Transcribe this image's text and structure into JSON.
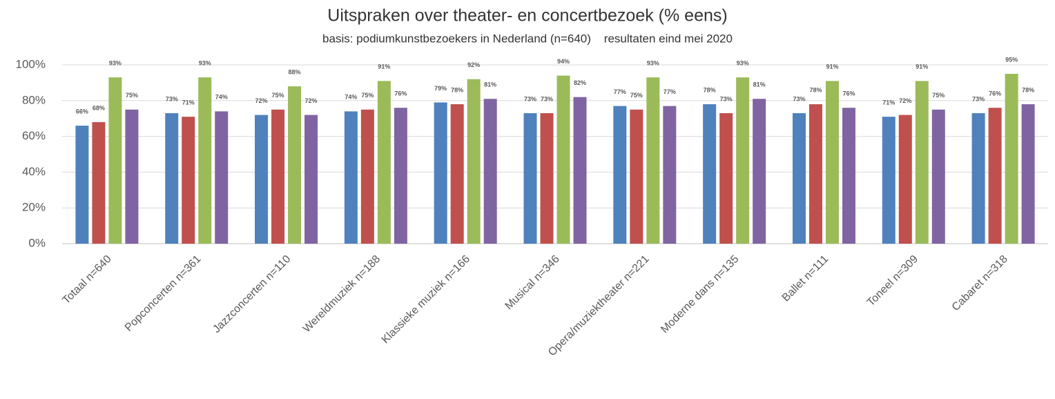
{
  "chart_data": {
    "type": "bar",
    "title": "Uitspraken over theater- en concertbezoek (% eens)",
    "subtitle": "basis: podiumkunstbezoekers in Nederland (n=640)    resultaten eind mei 2020",
    "categories": [
      "Totaal n=640",
      "Popconcerten n=361",
      "Jazzconcerten n=110",
      "Wereldmuziek n=188",
      "Klassieke muziek n=166",
      "Musical n=346",
      "Opera/muziektheater n=221",
      "Moderne dans n=135",
      "Ballet n=111",
      "Toneel n=309",
      "Cabaret n=318"
    ],
    "series": [
      {
        "color": "#4f81bd",
        "values": [
          66,
          73,
          72,
          74,
          79,
          73,
          77,
          78,
          73,
          71,
          73
        ],
        "value_labels": [
          "66%",
          "73%",
          "72%",
          "74%",
          "79%",
          "73%",
          "77%",
          "78%",
          "73%",
          "71%",
          "73%"
        ]
      },
      {
        "color": "#c0504d",
        "values": [
          68,
          71,
          75,
          75,
          78,
          73,
          75,
          73,
          78,
          72,
          76
        ],
        "value_labels": [
          "68%",
          "71%",
          "75%",
          "75%",
          "78%",
          "73%",
          "75%",
          "73%",
          "78%",
          "72%",
          "76%"
        ]
      },
      {
        "color": "#9bbb59",
        "values": [
          93,
          93,
          88,
          91,
          92,
          94,
          93,
          93,
          91,
          91,
          95
        ],
        "value_labels": [
          "93%",
          "93%",
          "88%",
          "91%",
          "92%",
          "94%",
          "93%",
          "93%",
          "91%",
          "91%",
          "95%"
        ]
      },
      {
        "color": "#8064a2",
        "values": [
          75,
          74,
          72,
          76,
          81,
          82,
          77,
          81,
          76,
          75,
          78
        ],
        "value_labels": [
          "75%",
          "74%",
          "72%",
          "76%",
          "81%",
          "82%",
          "77%",
          "81%",
          "76%",
          "75%",
          "78%"
        ]
      }
    ],
    "ylim": [
      0,
      100
    ],
    "yticks": [
      {
        "value": 0,
        "label": "0%"
      },
      {
        "value": 20,
        "label": "20%"
      },
      {
        "value": 40,
        "label": "40%"
      },
      {
        "value": 60,
        "label": "60%"
      },
      {
        "value": 80,
        "label": "80%"
      },
      {
        "value": 100,
        "label": "100%"
      }
    ],
    "grid": true
  }
}
